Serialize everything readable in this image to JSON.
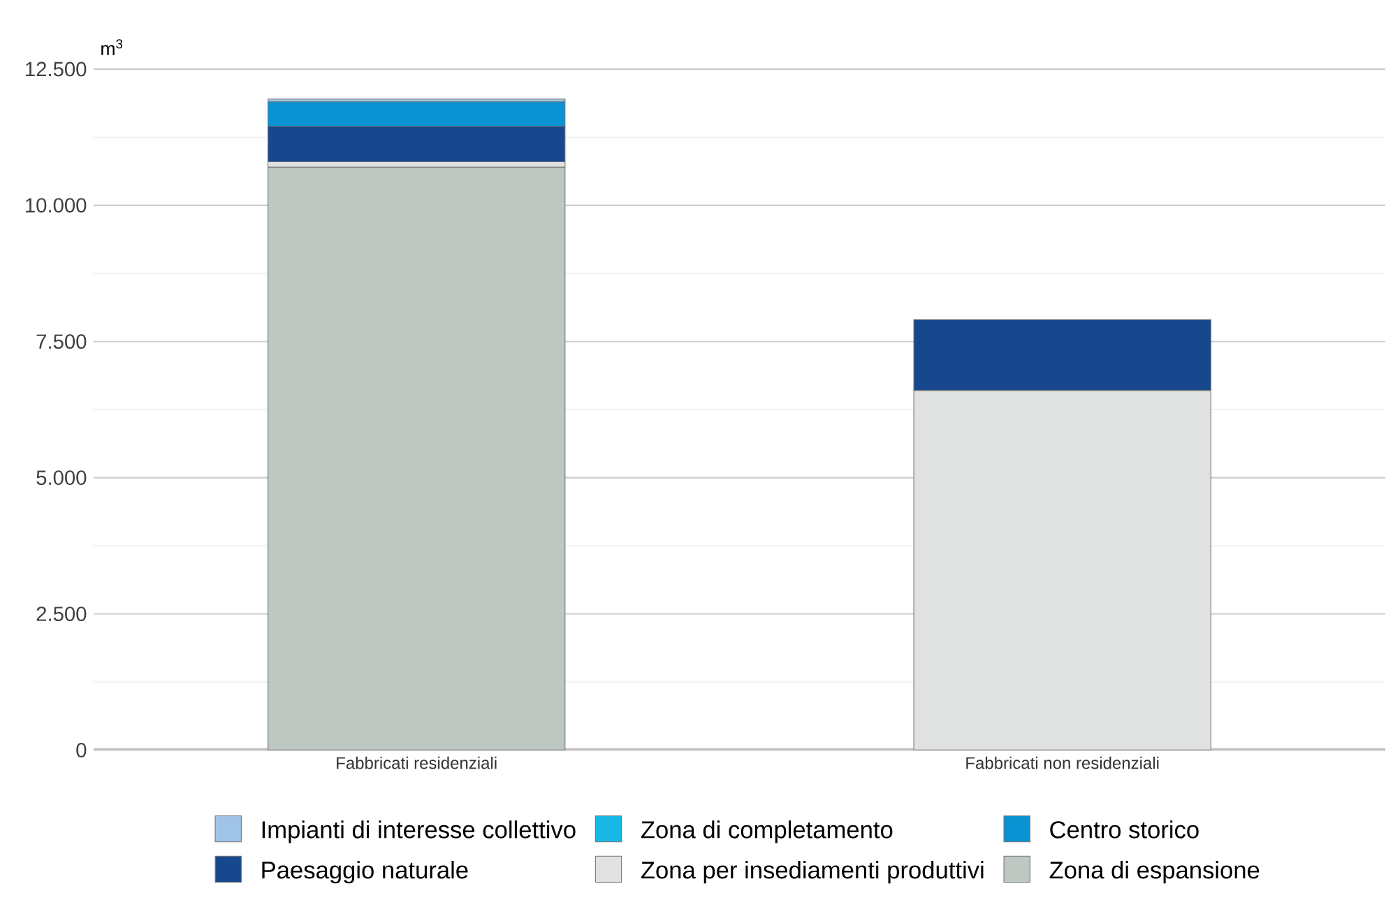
{
  "chart_data": {
    "type": "bar",
    "stacked": true,
    "ylabel": "m$^{3}$",
    "categories": [
      "Fabbricati residenziali",
      "Fabbricati non residenziali"
    ],
    "series": [
      {
        "name": "Zona di espansione",
        "color": "#bec7c2",
        "values": [
          10700,
          0
        ]
      },
      {
        "name": "Zona per insediamenti produttivi",
        "color": "#dfe2e0",
        "values": [
          100,
          6600
        ]
      },
      {
        "name": "Paesaggio naturale",
        "color": "#17488e",
        "values": [
          650,
          1300
        ]
      },
      {
        "name": "Centro storico",
        "color": "#0a93d3",
        "values": [
          450,
          0
        ]
      },
      {
        "name": "Zona di completamento",
        "color": "#17b8e6",
        "values": [
          0,
          0
        ]
      },
      {
        "name": "Impianti di interesse collettivo",
        "color": "#a0c4e8",
        "values": [
          50,
          0
        ]
      }
    ],
    "ylim": [
      0,
      12500
    ],
    "yticks": [
      0,
      {
        "value": 2500,
        "label": "2.500"
      },
      {
        "value": 5000,
        "label": "5.000"
      },
      {
        "value": 7500,
        "label": "7.500"
      },
      {
        "value": 10000,
        "label": "10.000"
      },
      {
        "value": 12500,
        "label": "12.500"
      }
    ],
    "grid": true,
    "legend": "bottom"
  }
}
